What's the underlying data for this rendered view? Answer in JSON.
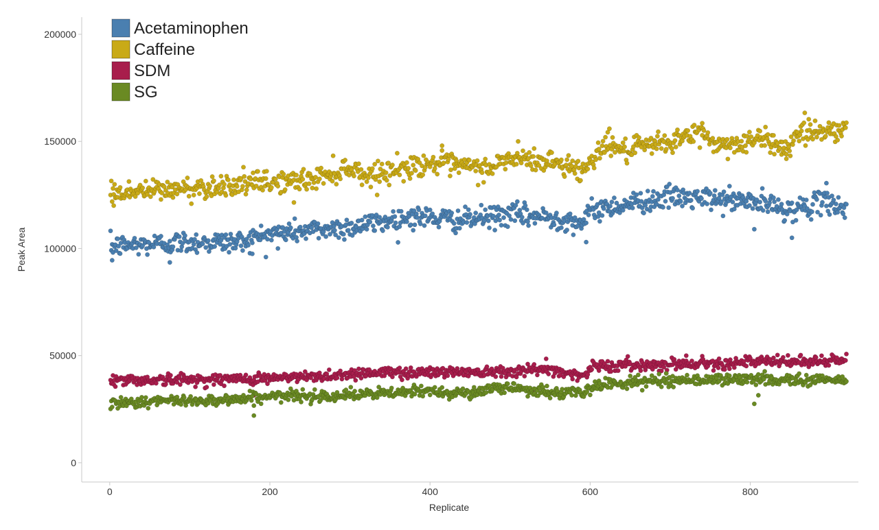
{
  "chart_data": {
    "type": "scatter",
    "xlabel": "Replicate",
    "ylabel": "Peak Area",
    "xlim": [
      -35,
      935
    ],
    "ylim": [
      -9000,
      208000
    ],
    "x_ticks": [
      0,
      200,
      400,
      600,
      800
    ],
    "y_ticks": [
      0,
      50000,
      100000,
      150000,
      200000
    ],
    "x_tick_labels": [
      "0",
      "200",
      "400",
      "600",
      "800"
    ],
    "y_tick_labels": [
      "0",
      "50000",
      "100000",
      "150000",
      "200000"
    ],
    "grid": false,
    "legend_position": "top-left",
    "point_count_per_series": 920,
    "series": [
      {
        "name": "Acetaminophen",
        "color": "#4a7fb0",
        "trend": [
          [
            0,
            101000
          ],
          [
            100,
            103000
          ],
          [
            160,
            103000
          ],
          [
            200,
            107000
          ],
          [
            300,
            110000
          ],
          [
            380,
            115000
          ],
          [
            440,
            113000
          ],
          [
            500,
            116000
          ],
          [
            560,
            114000
          ],
          [
            595,
            112000
          ],
          [
            600,
            118000
          ],
          [
            650,
            121000
          ],
          [
            700,
            124000
          ],
          [
            800,
            122000
          ],
          [
            850,
            118000
          ],
          [
            900,
            122000
          ],
          [
            920,
            118000
          ]
        ],
        "outliers": [
          [
            3,
            94500
          ],
          [
            75,
            93500
          ],
          [
            178,
            97500
          ],
          [
            210,
            100000
          ],
          [
            595,
            103000
          ],
          [
            805,
            109000
          ],
          [
            852,
            105000
          ],
          [
            895,
            130500
          ]
        ]
      },
      {
        "name": "Caffeine",
        "color": "#c9aa17",
        "trend": [
          [
            0,
            126000
          ],
          [
            100,
            128000
          ],
          [
            160,
            130000
          ],
          [
            250,
            132000
          ],
          [
            300,
            138000
          ],
          [
            320,
            134000
          ],
          [
            400,
            140000
          ],
          [
            470,
            137000
          ],
          [
            500,
            142000
          ],
          [
            560,
            140000
          ],
          [
            595,
            136000
          ],
          [
            600,
            142000
          ],
          [
            625,
            150000
          ],
          [
            640,
            145000
          ],
          [
            700,
            150000
          ],
          [
            740,
            154000
          ],
          [
            760,
            148000
          ],
          [
            820,
            151000
          ],
          [
            850,
            146000
          ],
          [
            855,
            154000
          ],
          [
            920,
            156000
          ]
        ],
        "outliers": [
          [
            5,
            120000
          ],
          [
            230,
            121500
          ],
          [
            415,
            148000
          ],
          [
            510,
            150000
          ],
          [
            740,
            158500
          ],
          [
            845,
            144000
          ]
        ]
      },
      {
        "name": "SDM",
        "color": "#a81d4c",
        "trend": [
          [
            0,
            38500
          ],
          [
            150,
            39000
          ],
          [
            250,
            40000
          ],
          [
            320,
            42000
          ],
          [
            450,
            42500
          ],
          [
            550,
            43500
          ],
          [
            595,
            40500
          ],
          [
            600,
            45000
          ],
          [
            700,
            46000
          ],
          [
            800,
            47000
          ],
          [
            920,
            47500
          ]
        ],
        "outliers": [
          [
            180,
            31500
          ],
          [
            528,
            33000
          ],
          [
            545,
            48500
          ],
          [
            720,
            50000
          ]
        ]
      },
      {
        "name": "SG",
        "color": "#6a8a23",
        "trend": [
          [
            0,
            28000
          ],
          [
            150,
            29500
          ],
          [
            200,
            31000
          ],
          [
            300,
            31500
          ],
          [
            400,
            33500
          ],
          [
            450,
            32500
          ],
          [
            500,
            35500
          ],
          [
            550,
            32500
          ],
          [
            595,
            33000
          ],
          [
            610,
            36500
          ],
          [
            700,
            38500
          ],
          [
            800,
            39000
          ],
          [
            920,
            38500
          ]
        ],
        "outliers": [
          [
            180,
            22000
          ],
          [
            805,
            27500
          ],
          [
            810,
            31500
          ],
          [
            660,
            41000
          ]
        ]
      }
    ]
  }
}
